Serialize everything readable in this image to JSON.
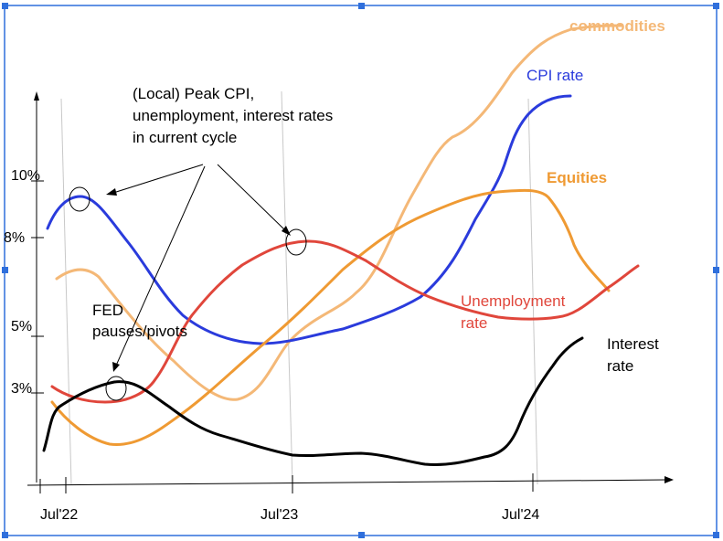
{
  "chart_data": {
    "type": "line",
    "y_ticks": [
      "10%",
      "8%",
      "5%",
      "3%"
    ],
    "x_ticks": [
      "Jul'22",
      "Jul'23",
      "Jul'24"
    ],
    "series": [
      {
        "name": "commodities",
        "color": "#f4b877"
      },
      {
        "name": "CPI rate",
        "color": "#2a3bdc"
      },
      {
        "name": "Equities",
        "color": "#ef9a33"
      },
      {
        "name": "Unemployment rate",
        "color": "#e0463b"
      },
      {
        "name": "Interest rate",
        "color": "#000000"
      }
    ],
    "annotations": {
      "peak_note": [
        "(Local) Peak CPI,",
        "unemployment, interest rates",
        "in current cycle"
      ],
      "fed_note": [
        "FED",
        "pauses/pivots"
      ]
    }
  },
  "labels": {
    "commodities": "commodities",
    "cpi": "CPI rate",
    "equities": "Equities",
    "unemployment": [
      "Unemployment",
      "rate"
    ],
    "interest": [
      "Interest",
      "rate"
    ]
  },
  "colors": {
    "selection": "#2f6fdc",
    "guide_lines": "#c8c8c8",
    "axis": "#000000"
  }
}
